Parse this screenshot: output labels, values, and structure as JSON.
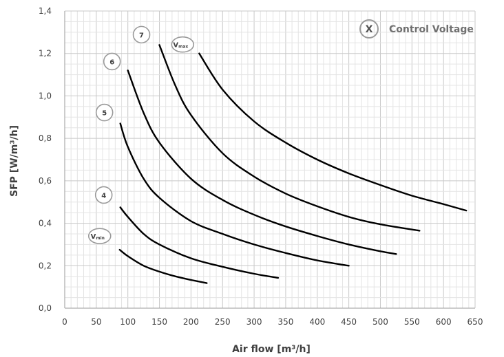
{
  "chart_data": {
    "type": "line",
    "xlabel": "Air flow [m³/h]",
    "ylabel": "SFP [W/m³/h]",
    "xlim": [
      0,
      650
    ],
    "ylim": [
      0,
      1.4
    ],
    "x_ticks": [
      "0",
      "50",
      "100",
      "150",
      "200",
      "250",
      "300",
      "350",
      "400",
      "450",
      "500",
      "550",
      "600",
      "650"
    ],
    "y_ticks": [
      "0,0",
      "0,2",
      "0,4",
      "0,6",
      "0,8",
      "1,0",
      "1,2",
      "1,4"
    ],
    "grid": true,
    "legend": {
      "symbol": "X",
      "text": "Control Voltage",
      "placement": "top-right"
    },
    "series": [
      {
        "name": "Vmin",
        "label_main": "V",
        "label_sub": "min",
        "x": [
          87,
          100,
          125,
          150,
          175,
          200,
          225
        ],
        "y": [
          0.275,
          0.245,
          0.2,
          0.172,
          0.15,
          0.133,
          0.118
        ]
      },
      {
        "name": "4",
        "label_main": "4",
        "label_sub": "",
        "x": [
          88,
          100,
          125,
          150,
          200,
          250,
          300,
          338
        ],
        "y": [
          0.475,
          0.43,
          0.35,
          0.3,
          0.235,
          0.195,
          0.162,
          0.143
        ]
      },
      {
        "name": "5",
        "label_main": "5",
        "label_sub": "",
        "x": [
          88,
          100,
          125,
          150,
          200,
          250,
          300,
          350,
          400,
          450
        ],
        "y": [
          0.87,
          0.76,
          0.61,
          0.52,
          0.41,
          0.35,
          0.3,
          0.26,
          0.225,
          0.2
        ]
      },
      {
        "name": "6",
        "label_main": "6",
        "label_sub": "",
        "x": [
          100,
          125,
          150,
          200,
          250,
          300,
          350,
          400,
          450,
          500,
          525
        ],
        "y": [
          1.12,
          0.92,
          0.78,
          0.61,
          0.51,
          0.44,
          0.385,
          0.34,
          0.3,
          0.268,
          0.255
        ]
      },
      {
        "name": "7",
        "label_main": "7",
        "label_sub": "",
        "x": [
          150,
          175,
          200,
          250,
          300,
          350,
          400,
          450,
          500,
          562
        ],
        "y": [
          1.24,
          1.05,
          0.91,
          0.73,
          0.62,
          0.54,
          0.48,
          0.43,
          0.395,
          0.365
        ]
      },
      {
        "name": "Vmax",
        "label_main": "V",
        "label_sub": "max",
        "x": [
          213,
          250,
          300,
          350,
          400,
          450,
          500,
          550,
          600,
          636
        ],
        "y": [
          1.2,
          1.03,
          0.88,
          0.78,
          0.7,
          0.635,
          0.58,
          0.53,
          0.49,
          0.46
        ]
      }
    ]
  },
  "colors": {
    "line": "#000000",
    "grid_minor": "#e4e4e4",
    "grid_major": "#c8c8c8",
    "circle": "#9a9a9a",
    "text": "#404040"
  }
}
